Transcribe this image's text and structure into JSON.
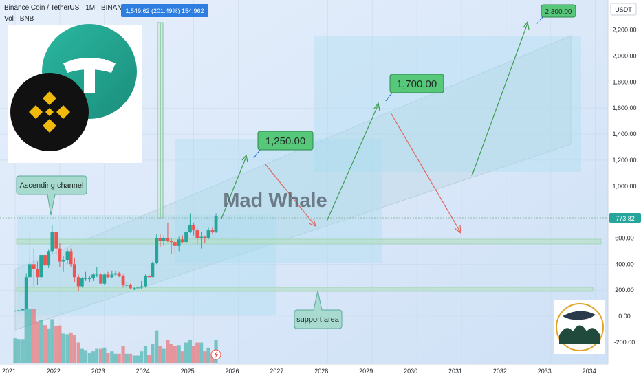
{
  "header": {
    "symbol_line": "Binance Coin / TetherUS · 1M · BINANCE",
    "vol_line": "Vol · BNB",
    "measure_badge": "1,549.62 (201.49%) 154,962"
  },
  "watermark": "Mad Whale",
  "currency": "USDT",
  "price_tag": "773.82",
  "callouts": {
    "ascending_channel": "Ascending channel",
    "support_area": "support area"
  },
  "colors": {
    "background": "#dde9f7",
    "up": "#26a69a",
    "down": "#ef5350",
    "target_box": "#57c77a",
    "channel": "#c2dbe8",
    "zone": "#a7dcf0"
  },
  "chart_data": {
    "type": "candlestick",
    "title": "Binance Coin / TetherUS · 1M · BINANCE",
    "x_ticks": [
      "2021",
      "2022",
      "2023",
      "2024",
      "2025",
      "2026",
      "2027",
      "2028",
      "2029",
      "2030",
      "2031",
      "2032",
      "2033",
      "2034"
    ],
    "y_ticks": [
      "2,200.00",
      "2,000.00",
      "1,800.00",
      "1,600.00",
      "1,400.00",
      "1,200.00",
      "1,000.00",
      "600.00",
      "400.00",
      "200.00",
      "0.00",
      "-200.00"
    ],
    "y_range": [
      -280,
      2400
    ],
    "last_price": 773.82,
    "targets": [
      {
        "label": "1,250.00",
        "value": 1250
      },
      {
        "label": "1,700.00",
        "value": 1700
      },
      {
        "label": "2,300.00",
        "value": 2300
      }
    ],
    "ohlc": [
      [
        2021.0,
        37,
        45,
        35,
        42
      ],
      [
        2021.08,
        42,
        48,
        38,
        45
      ],
      [
        2021.17,
        45,
        55,
        40,
        55
      ],
      [
        2021.25,
        55,
        330,
        55,
        300
      ],
      [
        2021.33,
        300,
        640,
        270,
        400
      ],
      [
        2021.42,
        400,
        520,
        230,
        360
      ],
      [
        2021.5,
        360,
        420,
        240,
        300
      ],
      [
        2021.58,
        300,
        480,
        280,
        470
      ],
      [
        2021.67,
        470,
        520,
        360,
        390
      ],
      [
        2021.75,
        390,
        510,
        370,
        500
      ],
      [
        2021.83,
        500,
        700,
        480,
        650
      ],
      [
        2021.92,
        650,
        650,
        480,
        520
      ],
      [
        2022.0,
        520,
        560,
        380,
        420
      ],
      [
        2022.08,
        420,
        460,
        340,
        430
      ],
      [
        2022.17,
        430,
        520,
        400,
        500
      ],
      [
        2022.25,
        500,
        520,
        380,
        400
      ],
      [
        2022.33,
        400,
        450,
        260,
        300
      ],
      [
        2022.42,
        300,
        320,
        190,
        230
      ],
      [
        2022.5,
        230,
        300,
        220,
        290
      ],
      [
        2022.58,
        290,
        340,
        270,
        290
      ],
      [
        2022.67,
        290,
        310,
        260,
        290
      ],
      [
        2022.75,
        290,
        330,
        270,
        320
      ],
      [
        2022.83,
        320,
        380,
        300,
        320
      ],
      [
        2022.92,
        320,
        330,
        250,
        250
      ],
      [
        2023.0,
        250,
        330,
        240,
        320
      ],
      [
        2023.08,
        320,
        340,
        290,
        300
      ],
      [
        2023.17,
        300,
        350,
        290,
        320
      ],
      [
        2023.25,
        320,
        350,
        310,
        330
      ],
      [
        2023.33,
        330,
        340,
        300,
        310
      ],
      [
        2023.42,
        310,
        320,
        220,
        240
      ],
      [
        2023.5,
        240,
        260,
        220,
        240
      ],
      [
        2023.58,
        240,
        250,
        210,
        215
      ],
      [
        2023.67,
        215,
        225,
        200,
        215
      ],
      [
        2023.75,
        215,
        230,
        205,
        220
      ],
      [
        2023.83,
        220,
        270,
        210,
        230
      ],
      [
        2023.92,
        230,
        320,
        220,
        310
      ],
      [
        2024.0,
        310,
        320,
        290,
        300
      ],
      [
        2024.08,
        300,
        420,
        300,
        410
      ],
      [
        2024.17,
        410,
        630,
        400,
        600
      ],
      [
        2024.25,
        600,
        630,
        530,
        580
      ],
      [
        2024.33,
        580,
        620,
        540,
        600
      ],
      [
        2024.42,
        600,
        720,
        570,
        580
      ],
      [
        2024.5,
        580,
        600,
        480,
        570
      ],
      [
        2024.58,
        570,
        580,
        480,
        540
      ],
      [
        2024.67,
        540,
        610,
        500,
        590
      ],
      [
        2024.75,
        590,
        620,
        560,
        570
      ],
      [
        2024.83,
        570,
        680,
        550,
        650
      ],
      [
        2024.92,
        650,
        790,
        640,
        700
      ],
      [
        2025.0,
        700,
        720,
        620,
        660
      ],
      [
        2025.08,
        660,
        680,
        550,
        600
      ],
      [
        2025.17,
        600,
        650,
        520,
        610
      ],
      [
        2025.25,
        610,
        620,
        560,
        600
      ],
      [
        2025.33,
        600,
        680,
        590,
        660
      ],
      [
        2025.42,
        660,
        680,
        630,
        650
      ],
      [
        2025.5,
        650,
        790,
        640,
        770
      ]
    ],
    "volume_note": "volume bars shown beneath price, no scale printed"
  }
}
